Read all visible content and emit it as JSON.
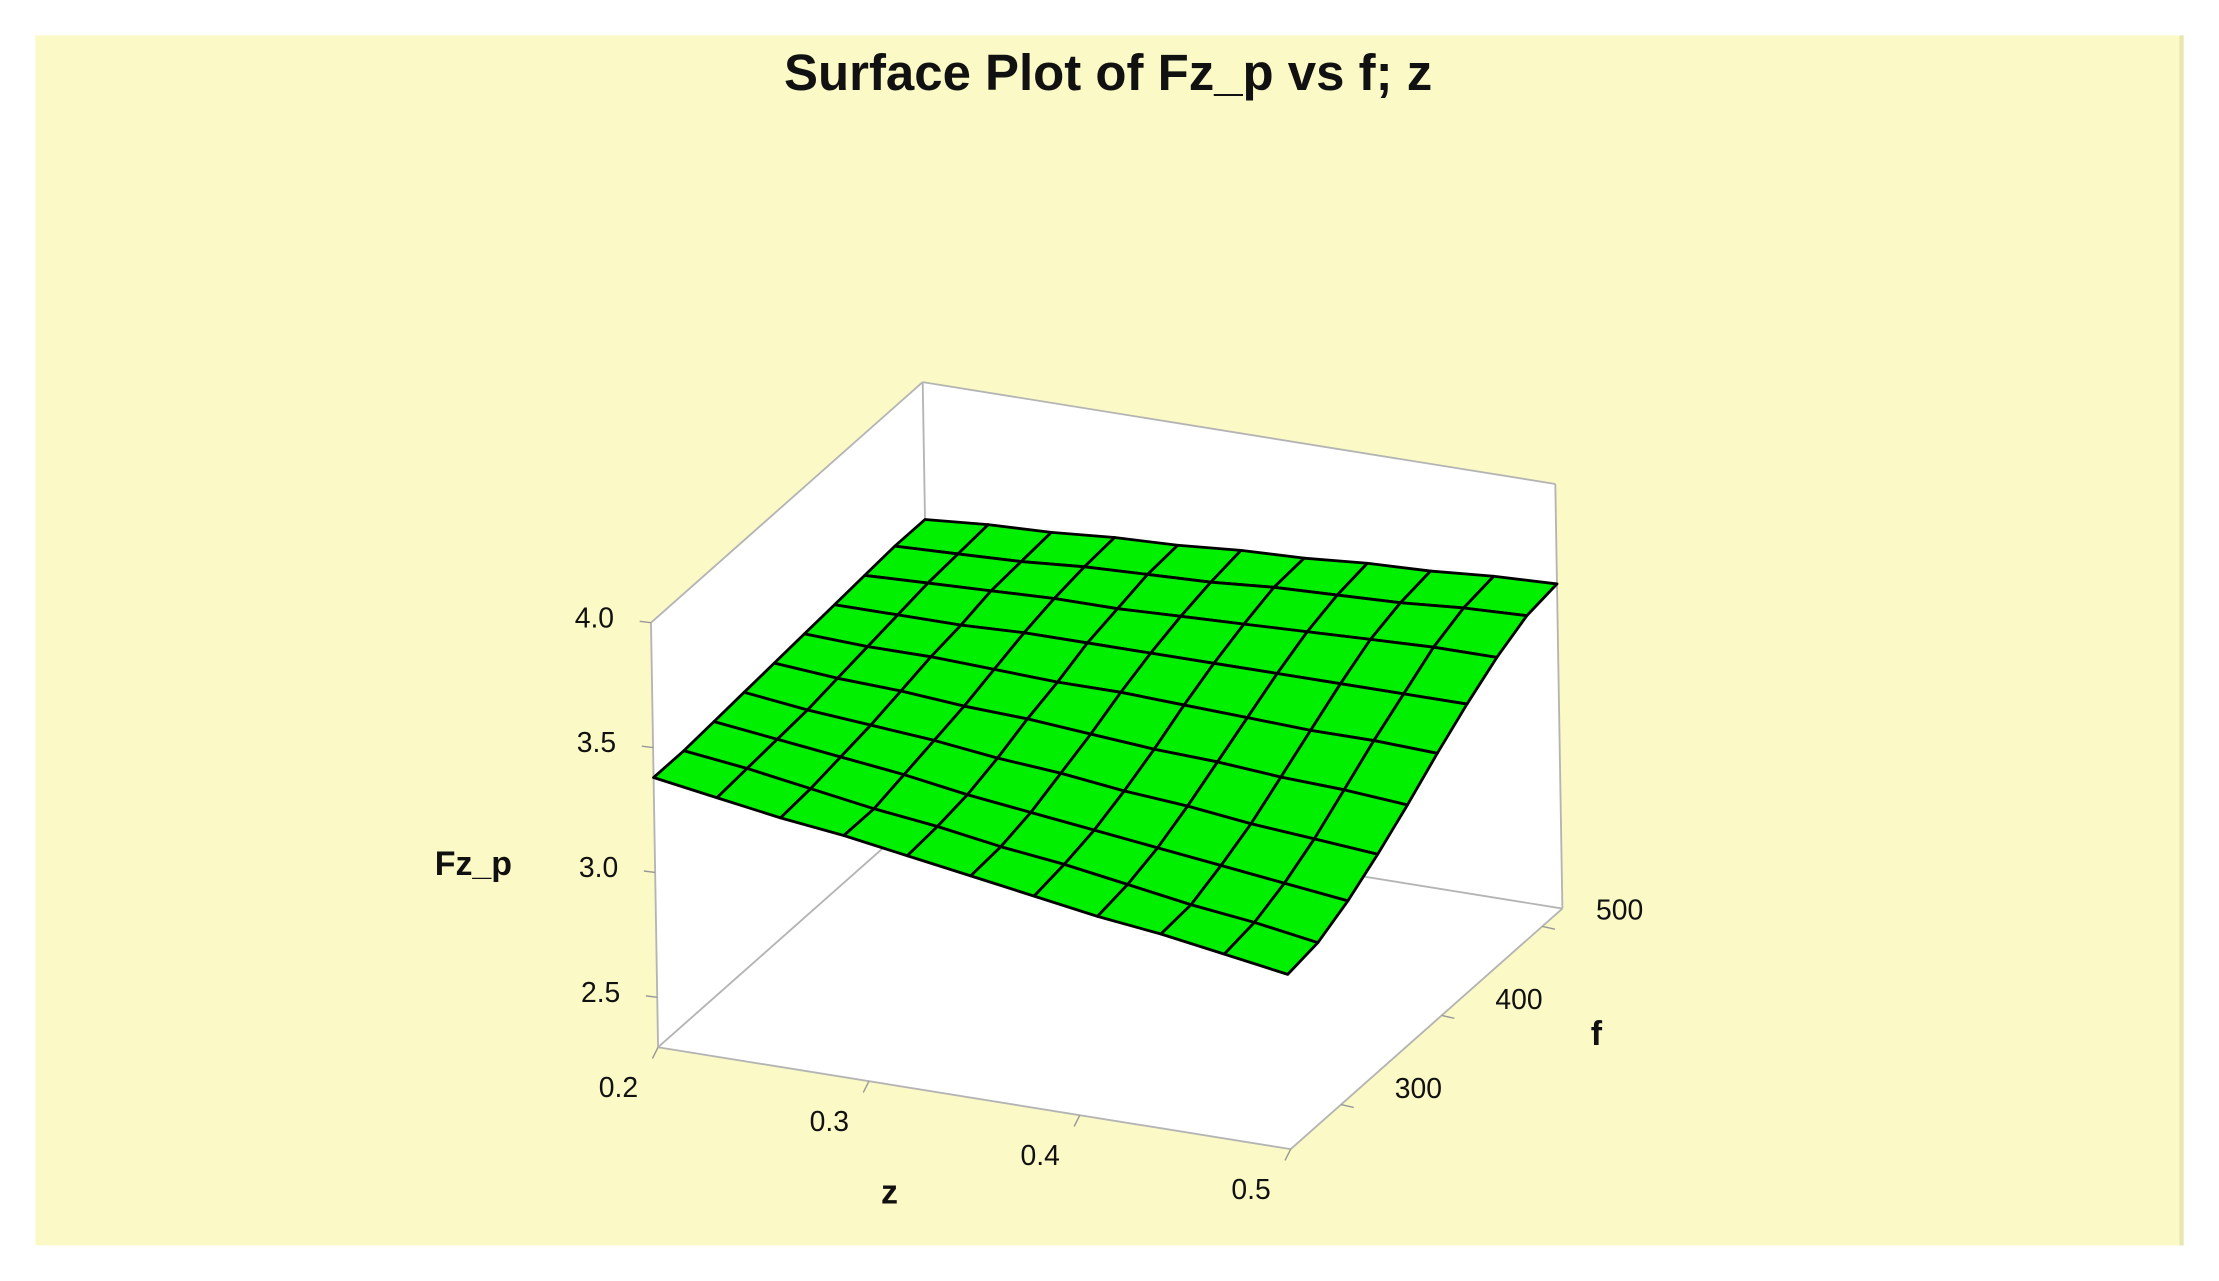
{
  "chart_data": {
    "type": "surface",
    "title": "Surface Plot of Fz_p vs f; z",
    "xlabel": "z",
    "ylabel": "f",
    "zlabel": "Fz_p",
    "x": [
      0.2,
      0.23,
      0.26,
      0.29,
      0.32,
      0.35,
      0.38,
      0.41,
      0.44,
      0.47,
      0.5
    ],
    "y": [
      250,
      280,
      310,
      340,
      370,
      400,
      430,
      460,
      490,
      520
    ],
    "values": [
      [
        3.38,
        3.34,
        3.3,
        3.27,
        3.23,
        3.19,
        3.15,
        3.11,
        3.08,
        3.04,
        3.0
      ],
      [
        3.38,
        3.35,
        3.31,
        3.27,
        3.24,
        3.2,
        3.17,
        3.13,
        3.09,
        3.06,
        3.02
      ],
      [
        3.39,
        3.36,
        3.33,
        3.3,
        3.26,
        3.23,
        3.2,
        3.17,
        3.14,
        3.11,
        3.08
      ],
      [
        3.4,
        3.37,
        3.35,
        3.33,
        3.3,
        3.28,
        3.25,
        3.23,
        3.2,
        3.18,
        3.16
      ],
      [
        3.41,
        3.39,
        3.38,
        3.36,
        3.35,
        3.33,
        3.31,
        3.3,
        3.28,
        3.27,
        3.25
      ],
      [
        3.42,
        3.41,
        3.41,
        3.4,
        3.39,
        3.39,
        3.38,
        3.37,
        3.36,
        3.36,
        3.35
      ],
      [
        3.43,
        3.43,
        3.43,
        3.44,
        3.44,
        3.44,
        3.44,
        3.44,
        3.44,
        3.44,
        3.44
      ],
      [
        3.44,
        3.45,
        3.46,
        3.47,
        3.47,
        3.48,
        3.49,
        3.5,
        3.51,
        3.52,
        3.52
      ],
      [
        3.45,
        3.46,
        3.47,
        3.49,
        3.5,
        3.51,
        3.53,
        3.54,
        3.55,
        3.57,
        3.58
      ],
      [
        3.45,
        3.47,
        3.48,
        3.5,
        3.51,
        3.53,
        3.54,
        3.56,
        3.57,
        3.59,
        3.6
      ]
    ],
    "color": "#00f000",
    "edge_color": "#000000",
    "xlim": [
      0.2,
      0.5
    ],
    "ylim": [
      250,
      520
    ],
    "zlim": [
      2.3,
      4.0
    ],
    "xticks": [
      0.2,
      0.3,
      0.4,
      0.5
    ],
    "yticks": [
      300,
      400,
      500
    ],
    "zticks": [
      2.5,
      {
        "value": 3.0,
        "label": "3.0"
      },
      3.5,
      {
        "value": 4.0,
        "label": "4.0"
      }
    ]
  }
}
